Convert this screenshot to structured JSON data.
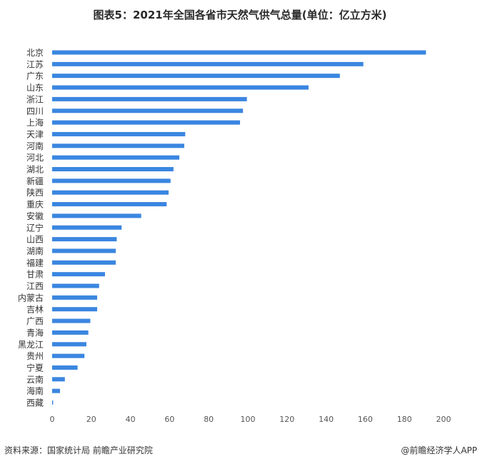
{
  "footer": {
    "source": "资料来源：国家统计局 前瞻产业研究院",
    "brand": "@前瞻经济学人APP"
  },
  "chart_data": {
    "type": "bar",
    "orientation": "horizontal",
    "title": "图表5：2021年全国各省市天然气供气总量(单位：亿立方米)",
    "xlabel": "",
    "ylabel": "",
    "xlim": [
      0,
      200
    ],
    "xticks": [
      0,
      20,
      40,
      60,
      80,
      100,
      120,
      140,
      160,
      180,
      200
    ],
    "grid": false,
    "bar_color": "#3a86e0",
    "categories": [
      "北京",
      "江苏",
      "广东",
      "山东",
      "浙江",
      "四川",
      "上海",
      "天津",
      "河南",
      "河北",
      "湖北",
      "新疆",
      "陕西",
      "重庆",
      "安徽",
      "辽宁",
      "山西",
      "湖南",
      "福建",
      "甘肃",
      "江西",
      "内蒙古",
      "吉林",
      "广西",
      "青海",
      "黑龙江",
      "贵州",
      "宁夏",
      "云南",
      "海南",
      "西藏"
    ],
    "values": [
      191,
      159,
      147,
      131,
      99.5,
      97.5,
      96,
      68,
      67.5,
      65,
      62,
      60.5,
      59.5,
      58.5,
      45.5,
      35.5,
      33,
      32.5,
      32.5,
      27,
      24,
      23,
      23,
      19.5,
      18.5,
      17.5,
      16.5,
      13,
      6.5,
      4,
      0.5
    ]
  }
}
